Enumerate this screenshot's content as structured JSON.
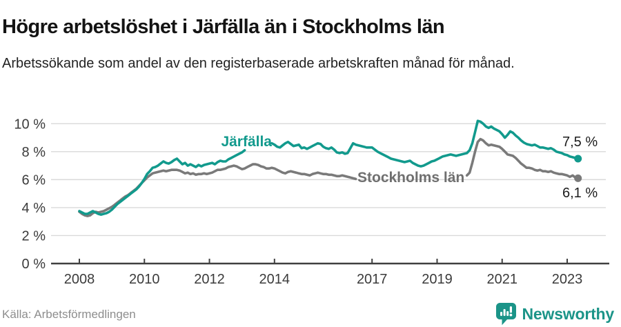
{
  "header": {
    "title": "Högre arbetslöshet i Järfälla än i Stockholms län",
    "subtitle": "Arbetssökande som andel av den registerbaserade arbetskraften månad för månad."
  },
  "footer": {
    "source": "Källa: Arbetsförmedlingen",
    "brand": "Newsworthy",
    "brand_icon": "newsworthy-speech-bubble-bar-chart-icon"
  },
  "colors": {
    "jarfalla_line": "#129a8d",
    "stockholm_line": "#7a7a7a",
    "stockholm_label": "#6f6f6f",
    "grid": "#d9d9d9",
    "axis": "#3f3f3f",
    "tick_text": "#3b3b3b",
    "title_text": "#141414",
    "muted_text": "#8d8d8d",
    "brand_teal": "#1b9488"
  },
  "chart_data": {
    "type": "line",
    "x_unit": "month",
    "x_start": "2008-01",
    "x_end": "2023-05",
    "months_count": 185,
    "ylim": [
      0,
      10.5
    ],
    "grid": true,
    "y_axis": {
      "ticks": [
        {
          "value": 0,
          "label": "0 %"
        },
        {
          "value": 2,
          "label": "2 %"
        },
        {
          "value": 4,
          "label": "4 %"
        },
        {
          "value": 6,
          "label": "6 %"
        },
        {
          "value": 8,
          "label": "8 %"
        },
        {
          "value": 10,
          "label": "10 %"
        }
      ]
    },
    "x_axis": {
      "ticks": [
        {
          "year": 2008,
          "label": "2008"
        },
        {
          "year": 2010,
          "label": "2010"
        },
        {
          "year": 2012,
          "label": "2012"
        },
        {
          "year": 2014,
          "label": "2014"
        },
        {
          "year": 2017,
          "label": "2017"
        },
        {
          "year": 2019,
          "label": "2019"
        },
        {
          "year": 2021,
          "label": "2021"
        },
        {
          "year": 2023,
          "label": "2023"
        }
      ]
    },
    "series": [
      {
        "name": "Stockholms län",
        "color": "#7a7a7a",
        "end_label": "6,1 %",
        "end_value": 6.1,
        "label_gap_indices": [
          102,
          143
        ],
        "values": [
          3.7,
          3.55,
          3.45,
          3.4,
          3.45,
          3.6,
          3.7,
          3.65,
          3.7,
          3.75,
          3.85,
          3.95,
          4.05,
          4.2,
          4.35,
          4.5,
          4.65,
          4.8,
          4.9,
          5.05,
          5.2,
          5.35,
          5.55,
          5.75,
          5.95,
          6.15,
          6.3,
          6.45,
          6.5,
          6.55,
          6.6,
          6.65,
          6.6,
          6.65,
          6.7,
          6.7,
          6.7,
          6.65,
          6.55,
          6.45,
          6.5,
          6.4,
          6.45,
          6.35,
          6.4,
          6.4,
          6.45,
          6.4,
          6.45,
          6.5,
          6.6,
          6.7,
          6.7,
          6.75,
          6.8,
          6.9,
          6.95,
          7.0,
          6.95,
          6.85,
          6.75,
          6.8,
          6.9,
          7.0,
          7.1,
          7.1,
          7.05,
          6.95,
          6.9,
          6.8,
          6.8,
          6.85,
          6.8,
          6.7,
          6.6,
          6.5,
          6.45,
          6.55,
          6.6,
          6.55,
          6.5,
          6.45,
          6.4,
          6.4,
          6.35,
          6.3,
          6.4,
          6.45,
          6.5,
          6.45,
          6.4,
          6.4,
          6.35,
          6.35,
          6.3,
          6.25,
          6.25,
          6.3,
          6.25,
          6.2,
          6.15,
          6.1,
          6.05,
          6.0,
          6.0,
          6.05,
          6.0,
          5.95,
          5.95,
          5.9,
          5.95,
          6.0,
          6.0,
          5.95,
          5.95,
          5.95,
          6.0,
          6.0,
          6.0,
          6.0,
          6.0,
          6.0,
          6.0,
          6.0,
          6.0,
          6.0,
          6.0,
          6.05,
          6.05,
          6.1,
          6.1,
          6.1,
          6.1,
          6.15,
          6.15,
          6.2,
          6.2,
          6.2,
          6.2,
          6.25,
          6.25,
          6.25,
          6.3,
          6.3,
          6.5,
          7.2,
          8.0,
          8.7,
          8.9,
          8.8,
          8.6,
          8.45,
          8.5,
          8.45,
          8.4,
          8.35,
          8.2,
          8.0,
          7.8,
          7.75,
          7.7,
          7.55,
          7.35,
          7.15,
          7.0,
          6.85,
          6.85,
          6.8,
          6.7,
          6.65,
          6.7,
          6.6,
          6.6,
          6.55,
          6.6,
          6.5,
          6.45,
          6.4,
          6.4,
          6.35,
          6.3,
          6.2,
          6.3,
          6.15,
          6.1
        ]
      },
      {
        "name": "Järfälla",
        "color": "#129a8d",
        "end_label": "7,5 %",
        "end_value": 7.5,
        "label_gap_indices": [
          61,
          71
        ],
        "values": [
          3.75,
          3.65,
          3.55,
          3.55,
          3.65,
          3.75,
          3.65,
          3.55,
          3.5,
          3.55,
          3.6,
          3.7,
          3.85,
          4.05,
          4.25,
          4.4,
          4.55,
          4.7,
          4.85,
          5.0,
          5.15,
          5.3,
          5.5,
          5.75,
          6.05,
          6.4,
          6.6,
          6.85,
          6.9,
          7.0,
          7.15,
          7.3,
          7.2,
          7.15,
          7.25,
          7.4,
          7.5,
          7.3,
          7.1,
          7.2,
          7.0,
          7.1,
          7.0,
          6.9,
          7.05,
          6.95,
          7.05,
          7.1,
          7.15,
          7.2,
          7.1,
          7.25,
          7.35,
          7.3,
          7.3,
          7.45,
          7.55,
          7.65,
          7.75,
          7.85,
          7.95,
          8.1,
          8.25,
          8.4,
          8.55,
          8.65,
          8.75,
          8.8,
          8.85,
          8.8,
          8.7,
          8.6,
          8.5,
          8.35,
          8.3,
          8.45,
          8.6,
          8.7,
          8.55,
          8.4,
          8.45,
          8.5,
          8.25,
          8.3,
          8.2,
          8.3,
          8.4,
          8.5,
          8.6,
          8.55,
          8.35,
          8.25,
          8.2,
          8.3,
          8.15,
          7.95,
          7.9,
          7.95,
          7.85,
          7.9,
          8.25,
          8.6,
          8.5,
          8.45,
          8.4,
          8.35,
          8.3,
          8.3,
          8.3,
          8.15,
          8.0,
          7.9,
          7.8,
          7.7,
          7.6,
          7.5,
          7.45,
          7.4,
          7.35,
          7.3,
          7.25,
          7.3,
          7.35,
          7.2,
          7.1,
          7.0,
          6.95,
          7.0,
          7.1,
          7.2,
          7.3,
          7.35,
          7.45,
          7.55,
          7.65,
          7.7,
          7.75,
          7.8,
          7.75,
          7.7,
          7.75,
          7.8,
          7.85,
          7.9,
          8.1,
          8.6,
          9.4,
          10.2,
          10.15,
          10.0,
          9.8,
          9.7,
          9.8,
          9.65,
          9.55,
          9.45,
          9.25,
          9.0,
          9.2,
          9.45,
          9.35,
          9.15,
          9.0,
          8.8,
          8.65,
          8.55,
          8.5,
          8.45,
          8.5,
          8.4,
          8.3,
          8.3,
          8.25,
          8.2,
          8.25,
          8.15,
          8.0,
          7.95,
          7.9,
          7.8,
          7.75,
          7.65,
          7.6,
          7.55,
          7.5
        ]
      }
    ]
  }
}
